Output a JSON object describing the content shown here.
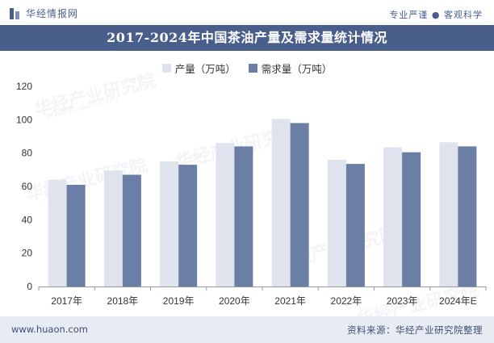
{
  "header": {
    "logo_text": "华经情报网",
    "slogan": "专业严谨 ● 客观科学"
  },
  "watermark": {
    "text": "华经产业研究院",
    "sub": "www.huaon.com"
  },
  "colors": {
    "brand": "#4a5e8c",
    "production": "#dfe3ee",
    "demand": "#6a7ea6"
  },
  "chart_data": {
    "type": "bar",
    "title": "2017-2024年中国茶油产量及需求量统计情况",
    "categories": [
      "2017年",
      "2018年",
      "2019年",
      "2020年",
      "2021年",
      "2022年",
      "2023年",
      "2024年E"
    ],
    "series": [
      {
        "name": "产量（万吨）",
        "values": [
          64,
          69.5,
          75,
          86,
          100.5,
          76,
          83.5,
          86.5
        ]
      },
      {
        "name": "需求量（万吨）",
        "values": [
          61,
          67,
          73,
          84,
          98,
          73.5,
          80.5,
          84
        ]
      }
    ],
    "y_ticks": [
      "0",
      "20",
      "40",
      "60",
      "80",
      "100",
      "120"
    ],
    "ylim": [
      0,
      120
    ],
    "xlabel": "",
    "ylabel": "",
    "legend": "top-center",
    "grid": false
  },
  "footer": {
    "website": "www.huaon.com",
    "source": "资料来源：华经产业研究院整理"
  }
}
